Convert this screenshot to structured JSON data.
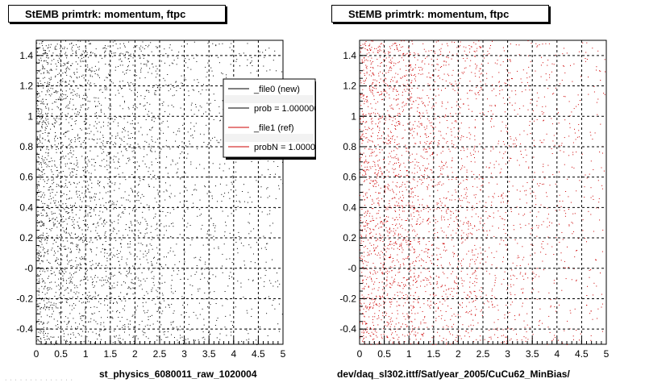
{
  "panels": [
    {
      "title": "StEMB primtrk: momentum, ftpc",
      "footer": "st_physics_6080011_raw_1020004"
    },
    {
      "title": "StEMB primtrk: momentum, ftpc",
      "footer": "dev/daq_sl302.ittf/Sat/year_2005/CuCu62_MinBias/"
    }
  ],
  "legend": {
    "entries": [
      {
        "label": "_file0 (new)",
        "color": "#000000"
      },
      {
        "label": "prob = 1.000000",
        "color": "#000000"
      },
      {
        "label": "_file1 (ref)",
        "color": "#cc0000"
      },
      {
        "label": "probN = 1.000000",
        "color": "#cc0000"
      }
    ]
  },
  "chart_data": [
    {
      "type": "scatter",
      "title": "StEMB primtrk: momentum, ftpc",
      "xlabel": "st_physics_6080011_raw_1020004",
      "ylabel": "",
      "xlim": [
        0,
        5
      ],
      "ylim": [
        -0.5,
        1.5
      ],
      "xticks": [
        "0",
        "0.5",
        "1",
        "1.5",
        "2",
        "2.5",
        "3",
        "3.5",
        "4",
        "4.5",
        "5"
      ],
      "yticks": [
        "-0.4",
        "-0.2",
        "-0",
        "0.2",
        "0.4",
        "0.6",
        "0.8",
        "1",
        "1.2",
        "1.4"
      ],
      "grid": true,
      "series": [
        {
          "name": "_file0 (new)",
          "color": "#000000",
          "n_points": 3200,
          "density": "uniform in y, decreasing with x"
        }
      ]
    },
    {
      "type": "scatter",
      "title": "StEMB primtrk: momentum, ftpc",
      "xlabel": "dev/daq_sl302.ittf/Sat/year_2005/CuCu62_MinBias/",
      "ylabel": "",
      "xlim": [
        0,
        5
      ],
      "ylim": [
        -0.5,
        1.5
      ],
      "xticks": [
        "0",
        "0.5",
        "1",
        "1.5",
        "2",
        "2.5",
        "3",
        "3.5",
        "4",
        "4.5",
        "5"
      ],
      "yticks": [
        "-0.4",
        "-0.2",
        "-0",
        "0.2",
        "0.4",
        "0.6",
        "0.8",
        "1",
        "1.2",
        "1.4"
      ],
      "grid": true,
      "series": [
        {
          "name": "_file1 (ref)",
          "color": "#cc0000",
          "n_points": 3200,
          "density": "uniform in y, decreasing with x"
        }
      ]
    }
  ]
}
